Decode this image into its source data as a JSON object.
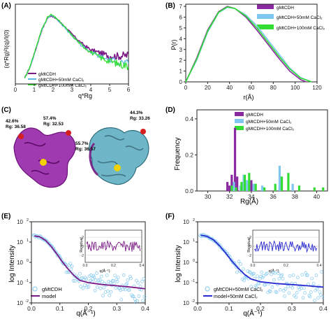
{
  "panels": {
    "A": {
      "label": "(A)",
      "ylabel": "(q*Rg)²I(q)/I(0)",
      "xlabel": "q*Rg",
      "legend": [
        "gMtCDH",
        "gMtCDH+50mM CaCl₂",
        "gMtCDH+100mM CaCl₂"
      ]
    },
    "B": {
      "label": "(B)",
      "ylabel": "P(r)",
      "xlabel": "r(Å)",
      "legend": [
        "gMtCDH",
        "gMtCDH+50mM CaCl₂",
        "gMtCDH+100mM CaCl₂"
      ]
    },
    "C": {
      "label": "(C)",
      "annotations": [
        "42.6%",
        "Rg: 36.58",
        "57.4%",
        "Rg: 32.53",
        "55.7%",
        "Rg: 36.57",
        "44.3%",
        "Rg: 33.26"
      ]
    },
    "D": {
      "label": "(D)",
      "ylabel": "Frequency",
      "xlabel": "Rg(Å)",
      "legend": [
        "gMtCDH",
        "gMtCDH+50mM CaCl₂",
        "gMtCDH+100mM CaCl₂"
      ]
    },
    "E": {
      "label": "(E)",
      "ylabel": "log Intensity",
      "xlabel": "q(Å⁻¹)",
      "legend": [
        "gMtCDH",
        "model"
      ],
      "inset_ylabel": "Residual",
      "inset_xlabel": "q(Å⁻¹)"
    },
    "F": {
      "label": "(F)",
      "ylabel": "log Intensity",
      "xlabel": "q(Å⁻¹)",
      "legend": [
        "gMtCDH+50mM CaCl₂",
        "model+50mM CaCl₂"
      ],
      "inset_ylabel": "Residual",
      "inset_xlabel": "q(Å⁻¹)"
    }
  },
  "colors": {
    "purple": "#7b1a86",
    "blue": "#5bb8e6",
    "green": "#33dd33",
    "darkblue": "#2a2ad0",
    "lightblue": "#7fc7ee",
    "axis": "#222222",
    "violet": "#8a2aa0"
  },
  "chart_data": [
    {
      "panel": "A",
      "type": "line",
      "xlim": [
        0,
        6
      ],
      "ylim": [
        0,
        2.0
      ],
      "xticks": [
        0,
        1,
        2,
        3,
        4,
        5,
        6
      ],
      "series": [
        {
          "name": "gMtCDH",
          "x": [
            0.5,
            0.8,
            1.1,
            1.4,
            1.7,
            1.9,
            2.2,
            2.6,
            3.0,
            3.5,
            4.0,
            4.5,
            5.0,
            5.5,
            6.0
          ],
          "y": [
            0.15,
            0.45,
            0.9,
            1.35,
            1.65,
            1.72,
            1.62,
            1.45,
            1.25,
            1.02,
            0.85,
            0.78,
            0.7,
            0.7,
            0.72
          ]
        },
        {
          "name": "gMtCDH+50mM CaCl₂",
          "x": [
            0.5,
            0.8,
            1.1,
            1.4,
            1.7,
            1.9,
            2.2,
            2.6,
            3.0,
            3.5,
            4.0,
            4.5,
            5.0,
            5.5,
            6.0
          ],
          "y": [
            0.15,
            0.45,
            0.9,
            1.35,
            1.65,
            1.73,
            1.63,
            1.42,
            1.2,
            0.97,
            0.8,
            0.68,
            0.6,
            0.55,
            0.5
          ]
        },
        {
          "name": "gMtCDH+100mM CaCl₂",
          "x": [
            0.5,
            0.8,
            1.1,
            1.4,
            1.7,
            1.9,
            2.2,
            2.6,
            3.0,
            3.5,
            4.0,
            4.5,
            5.0,
            5.5,
            6.0
          ],
          "y": [
            0.15,
            0.46,
            0.92,
            1.37,
            1.67,
            1.74,
            1.64,
            1.44,
            1.22,
            0.98,
            0.8,
            0.66,
            0.57,
            0.5,
            0.45
          ]
        }
      ]
    },
    {
      "panel": "B",
      "type": "line",
      "xlim": [
        0,
        120
      ],
      "ylim": [
        0,
        7.2
      ],
      "xticks": [
        0,
        20,
        40,
        60,
        80,
        100,
        120
      ],
      "yticks": [
        0,
        1,
        2,
        3,
        4,
        5,
        6,
        7
      ],
      "series": [
        {
          "name": "gMtCDH",
          "x": [
            0,
            10,
            20,
            30,
            38,
            45,
            55,
            65,
            75,
            85,
            95,
            105,
            110
          ],
          "y": [
            0,
            2.2,
            4.8,
            6.5,
            7.0,
            6.8,
            6.0,
            4.8,
            3.5,
            2.2,
            1.0,
            0.2,
            0
          ]
        },
        {
          "name": "gMtCDH+50mM CaCl₂",
          "x": [
            0,
            10,
            20,
            30,
            38,
            45,
            55,
            65,
            75,
            85,
            95,
            105,
            115
          ],
          "y": [
            0,
            2.0,
            4.6,
            6.4,
            6.9,
            6.8,
            6.2,
            5.2,
            3.9,
            2.6,
            1.3,
            0.4,
            0
          ]
        },
        {
          "name": "gMtCDH+100mM CaCl₂",
          "x": [
            0,
            10,
            20,
            30,
            38,
            45,
            55,
            65,
            75,
            85,
            95,
            105,
            115
          ],
          "y": [
            0,
            2.1,
            4.7,
            6.45,
            6.95,
            6.8,
            6.1,
            5.0,
            3.7,
            2.4,
            1.2,
            0.35,
            0
          ]
        }
      ]
    },
    {
      "panel": "D",
      "type": "bar",
      "xlim": [
        29,
        41
      ],
      "ylim": [
        0,
        0.45
      ],
      "xticks": [
        30,
        32,
        34,
        36,
        38,
        40
      ],
      "yticks": [
        0.0,
        0.2,
        0.4
      ],
      "series": [
        {
          "name": "gMtCDH",
          "x": [
            31.8,
            32.0,
            32.2,
            32.5,
            32.7,
            33.3,
            34.0,
            36.6
          ],
          "values": [
            0.05,
            0.03,
            0.09,
            0.35,
            0.08,
            0.04,
            0.06,
            0.02
          ]
        },
        {
          "name": "gMtCDH+50mM CaCl₂",
          "x": [
            32.4,
            33.0,
            33.3,
            33.6,
            34.2,
            35.0,
            36.6,
            37.8
          ],
          "values": [
            0.05,
            0.03,
            0.09,
            0.06,
            0.04,
            0.03,
            0.14,
            0.04
          ]
        },
        {
          "name": "gMtCDH+100mM CaCl₂",
          "x": [
            32.2,
            32.6,
            33.1,
            33.4,
            33.8,
            34.4,
            35.2,
            36.2,
            36.8,
            37.4,
            38.4,
            39.8,
            40.6
          ],
          "values": [
            0.03,
            0.02,
            0.05,
            0.09,
            0.1,
            0.04,
            0.02,
            0.04,
            0.08,
            0.1,
            0.03,
            0.02,
            0.02
          ]
        }
      ]
    },
    {
      "panel": "E",
      "type": "scatter",
      "xlim": [
        0,
        0.4
      ],
      "ylog": [
        -2,
        2
      ],
      "xticks": [
        0.0,
        0.1,
        0.2,
        0.3,
        0.4
      ],
      "yticks_exp": [
        -2,
        -1,
        0,
        1,
        2
      ],
      "series": [
        {
          "name": "gMtCDH",
          "x": [
            0.01,
            0.03,
            0.05,
            0.07,
            0.09,
            0.11,
            0.13,
            0.15,
            0.17,
            0.2,
            0.25,
            0.3,
            0.35,
            0.4
          ],
          "y": [
            20,
            18,
            12,
            6,
            2.5,
            1.0,
            0.45,
            0.22,
            0.13,
            0.1,
            0.08,
            0.07,
            0.06,
            0.05
          ]
        },
        {
          "name": "model",
          "x": [
            0.01,
            0.03,
            0.05,
            0.07,
            0.09,
            0.11,
            0.13,
            0.15,
            0.17,
            0.2,
            0.25,
            0.3,
            0.35,
            0.4
          ],
          "y": [
            20,
            18,
            12,
            6,
            2.5,
            1.0,
            0.45,
            0.22,
            0.13,
            0.1,
            0.08,
            0.07,
            0.06,
            0.05
          ]
        }
      ]
    },
    {
      "panel": "F",
      "type": "scatter",
      "xlim": [
        0,
        0.4
      ],
      "ylog": [
        -2,
        2
      ],
      "xticks": [
        0.0,
        0.1,
        0.2,
        0.3,
        0.4
      ],
      "yticks_exp": [
        -2,
        -1,
        0,
        1,
        2
      ],
      "series": [
        {
          "name": "gMtCDH+50mM CaCl₂",
          "x": [
            0.01,
            0.03,
            0.05,
            0.07,
            0.09,
            0.11,
            0.13,
            0.15,
            0.17,
            0.2,
            0.25,
            0.3,
            0.35,
            0.4
          ],
          "y": [
            22,
            19,
            13,
            6.5,
            2.8,
            1.1,
            0.5,
            0.25,
            0.15,
            0.11,
            0.09,
            0.08,
            0.07,
            0.06
          ]
        },
        {
          "name": "model+50mM CaCl₂",
          "x": [
            0.01,
            0.03,
            0.05,
            0.07,
            0.09,
            0.11,
            0.13,
            0.15,
            0.17,
            0.2,
            0.25,
            0.3,
            0.35,
            0.4
          ],
          "y": [
            22,
            19,
            13,
            6.5,
            2.8,
            1.1,
            0.5,
            0.25,
            0.15,
            0.11,
            0.09,
            0.08,
            0.07,
            0.06
          ]
        }
      ]
    }
  ]
}
